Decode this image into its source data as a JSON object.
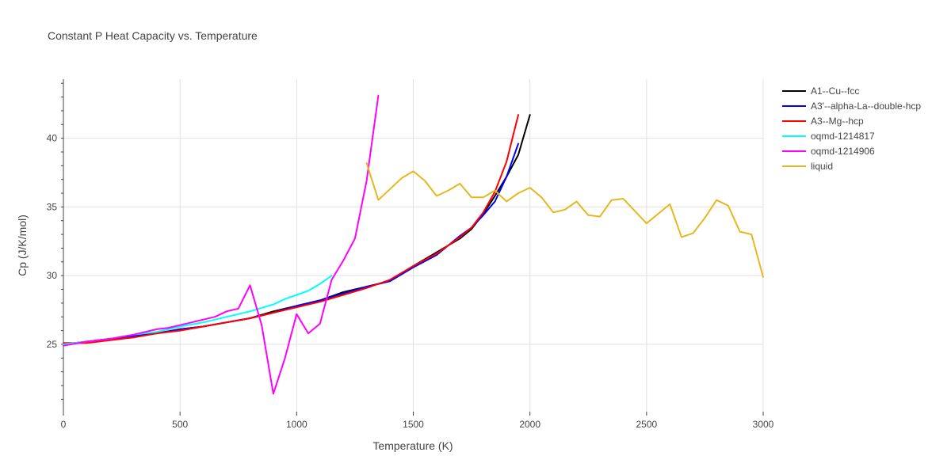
{
  "chart_data": {
    "type": "line",
    "title": "Constant P Heat Capacity vs. Temperature",
    "xlabel": "Temperature (K)",
    "ylabel": "Cp (J/K/mol)",
    "xlim": [
      0,
      3000
    ],
    "ylim": [
      20.1,
      44.3
    ],
    "xticks": [
      0,
      500,
      1000,
      1500,
      2000,
      2500,
      3000
    ],
    "yticks": [
      25,
      30,
      35,
      40
    ],
    "grid": true,
    "legend_position": "top-right",
    "series": [
      {
        "name": "A1--Cu--fcc",
        "color": "#000000",
        "x": [
          0,
          100,
          200,
          300,
          400,
          500,
          600,
          700,
          800,
          900,
          1000,
          1100,
          1200,
          1300,
          1400,
          1500,
          1600,
          1700,
          1750,
          1800,
          1850,
          1900,
          1950,
          2000
        ],
        "y": [
          25.0,
          25.2,
          25.4,
          25.6,
          25.8,
          26.1,
          26.3,
          26.6,
          26.9,
          27.4,
          27.8,
          28.2,
          28.8,
          29.2,
          29.6,
          30.7,
          31.7,
          32.7,
          33.4,
          34.5,
          35.8,
          37.2,
          38.8,
          41.7
        ]
      },
      {
        "name": "A3'--alpha-La--double-hcp",
        "color": "#0000ff",
        "x": [
          0,
          100,
          200,
          300,
          400,
          500,
          600,
          700,
          800,
          900,
          1000,
          1100,
          1200,
          1300,
          1400,
          1500,
          1600,
          1700,
          1750,
          1800,
          1850,
          1900,
          1950
        ],
        "y": [
          25.0,
          25.2,
          25.4,
          25.6,
          25.8,
          26.1,
          26.3,
          26.6,
          26.9,
          27.3,
          27.8,
          28.2,
          28.7,
          29.2,
          29.6,
          30.6,
          31.5,
          32.9,
          33.5,
          34.4,
          35.4,
          37.2,
          39.6
        ]
      },
      {
        "name": "A3--Mg--hcp",
        "color": "#ff0000",
        "x": [
          0,
          100,
          200,
          300,
          400,
          500,
          600,
          700,
          800,
          900,
          1000,
          1100,
          1200,
          1300,
          1400,
          1500,
          1600,
          1700,
          1750,
          1800,
          1850,
          1900,
          1950
        ],
        "y": [
          25.1,
          25.1,
          25.3,
          25.5,
          25.8,
          26.0,
          26.3,
          26.6,
          26.9,
          27.3,
          27.7,
          28.1,
          28.6,
          29.1,
          29.7,
          30.7,
          31.6,
          32.8,
          33.5,
          34.6,
          36.1,
          38.3,
          41.7
        ]
      },
      {
        "name": "oqmd-1214817",
        "color": "#00ffff",
        "x": [
          0,
          100,
          200,
          300,
          400,
          500,
          600,
          700,
          800,
          900,
          950,
          1000,
          1050,
          1100,
          1150
        ],
        "y": [
          25.0,
          25.2,
          25.4,
          25.7,
          25.9,
          26.3,
          26.6,
          27.0,
          27.4,
          27.9,
          28.3,
          28.6,
          28.9,
          29.4,
          30.0
        ]
      },
      {
        "name": "oqmd-1214906",
        "color": "#ff00ff",
        "x": [
          0,
          100,
          200,
          300,
          350,
          400,
          450,
          500,
          550,
          600,
          650,
          700,
          750,
          800,
          850,
          900,
          950,
          1000,
          1050,
          1100,
          1150,
          1200,
          1250,
          1300,
          1350
        ],
        "y": [
          24.9,
          25.2,
          25.4,
          25.7,
          25.9,
          26.1,
          26.2,
          26.4,
          26.6,
          26.8,
          27.0,
          27.4,
          27.6,
          29.3,
          26.4,
          21.4,
          24.0,
          27.2,
          25.8,
          26.5,
          29.7,
          31.1,
          32.7,
          36.9,
          43.1
        ]
      },
      {
        "name": "liquid",
        "color": "#e6b820",
        "x": [
          1300,
          1350,
          1400,
          1450,
          1500,
          1550,
          1600,
          1650,
          1700,
          1750,
          1800,
          1850,
          1900,
          1950,
          2000,
          2050,
          2100,
          2150,
          2200,
          2250,
          2300,
          2350,
          2400,
          2450,
          2500,
          2550,
          2600,
          2650,
          2700,
          2750,
          2800,
          2850,
          2900,
          2950,
          3000
        ],
        "y": [
          38.2,
          35.5,
          36.3,
          37.1,
          37.6,
          36.9,
          35.8,
          36.2,
          36.7,
          35.7,
          35.7,
          36.2,
          35.4,
          36.0,
          36.4,
          35.7,
          34.6,
          34.8,
          35.4,
          34.4,
          34.3,
          35.5,
          35.6,
          34.7,
          33.8,
          34.5,
          35.2,
          32.8,
          33.1,
          34.2,
          35.5,
          35.1,
          33.2,
          33.0,
          29.9
        ]
      }
    ]
  }
}
